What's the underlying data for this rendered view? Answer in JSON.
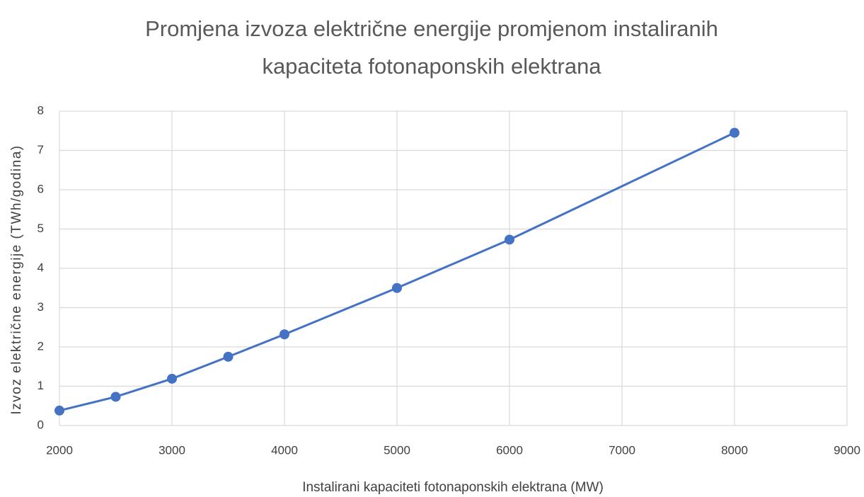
{
  "chart_data": {
    "type": "line",
    "title": "Promjena izvoza električne energije promjenom instaliranih kapaciteta fotonaponskih elektrana",
    "xlabel": "Instalirani kapaciteti fotonaponskih elektrana (MW)",
    "ylabel": "Izvoz električne energije (TWh/godina)",
    "x": [
      2000,
      2500,
      3000,
      3500,
      4000,
      5000,
      6000,
      8000
    ],
    "series": [
      {
        "name": "Izvoz",
        "color": "#4472c4",
        "values": [
          0.38,
          0.73,
          1.19,
          1.75,
          2.32,
          3.5,
          4.73,
          7.45
        ]
      }
    ],
    "xlim": [
      2000,
      9000
    ],
    "xticks": [
      2000,
      3000,
      4000,
      5000,
      6000,
      7000,
      8000,
      9000
    ],
    "ylim": [
      0,
      8
    ],
    "yticks": [
      0,
      1,
      2,
      3,
      4,
      5,
      6,
      7,
      8
    ],
    "grid": true,
    "markers": true
  }
}
